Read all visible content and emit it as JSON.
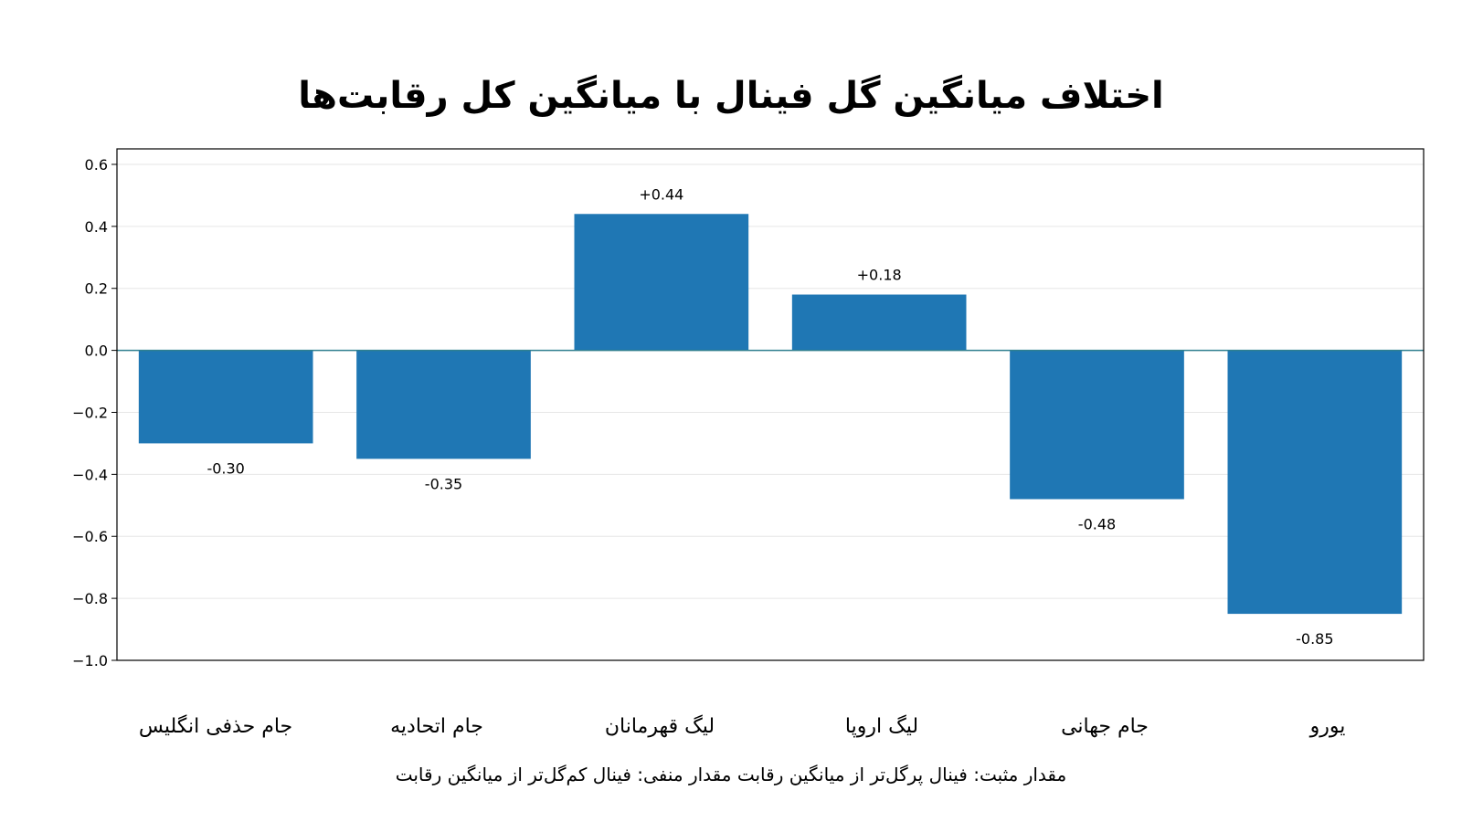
{
  "chart_data": {
    "type": "bar",
    "title": "اختلاف میانگین گل فینال با میانگین کل رقابت‌ها",
    "categories": [
      "جام حذفی انگلیس",
      "جام اتحادیه",
      "لیگ قهرمانان",
      "لیگ اروپا",
      "جام جهانی",
      "یورو"
    ],
    "values": [
      -0.3,
      -0.35,
      0.44,
      0.18,
      -0.48,
      -0.85
    ],
    "value_labels": [
      "-0.30",
      "-0.35",
      "+0.44",
      "+0.18",
      "-0.48",
      "-0.85"
    ],
    "ylim": [
      -1.0,
      0.65
    ],
    "yticks": [
      0.6,
      0.4,
      0.2,
      0.0,
      -0.2,
      -0.4,
      -0.6,
      -0.8,
      -1.0
    ],
    "ytick_labels": [
      "0.6",
      "0.4",
      "0.2",
      "0.0",
      "−0.2",
      "−0.4",
      "−0.6",
      "−0.8",
      "−1.0"
    ],
    "xlabel": "",
    "ylabel": "",
    "grid": true,
    "bar_color": "#1f77b4",
    "zero_line_color": "#2f7f8f",
    "note": "مقدار مثبت: فینال پرگل‌تر از میانگین رقابت  مقدار منفی: فینال کم‌گل‌تر از میانگین رقابت"
  }
}
